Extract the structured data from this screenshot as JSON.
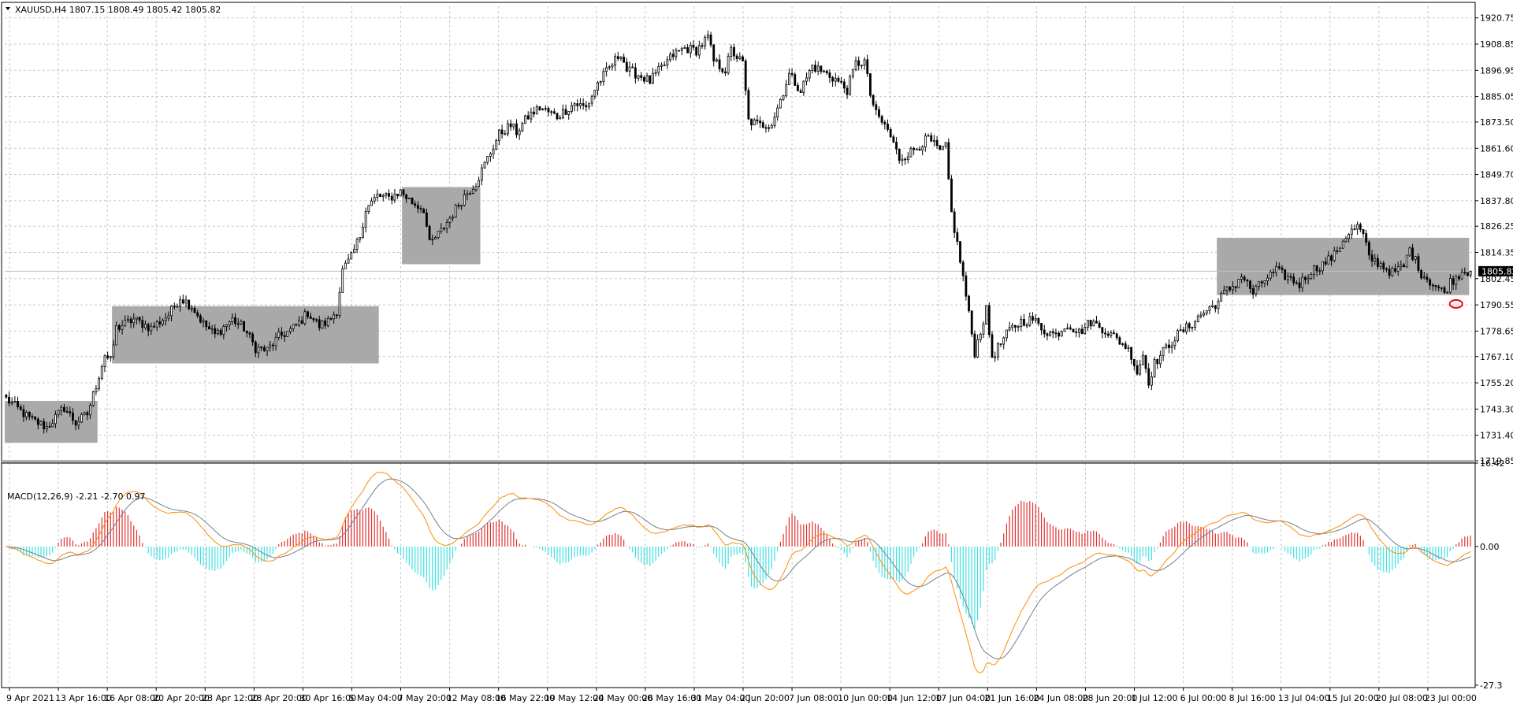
{
  "header": {
    "symbol_menu_icon": "triangle-down-icon",
    "symbol_info": "XAUUSD,H4  1807.15 1808.49 1805.42 1805.82",
    "macd_info": "MACD(12,26,9) -2.21 -2.70 0.97"
  },
  "colors": {
    "background": "#ffffff",
    "grid": "#c8c8c8",
    "candle": "#000000",
    "zone": "#a9a9a9",
    "current_price_line": "#c0c0c0",
    "price_badge": "#000000",
    "macd_line": "#ff8c00",
    "signal_line": "#708090",
    "hist_positive": "#e03030",
    "hist_negative": "#40e0e0",
    "marker": "#ff0000"
  },
  "chart_data": [
    {
      "type": "candlestick",
      "name": "price",
      "symbol": "XAUUSD",
      "timeframe": "H4",
      "current_price": "1805.82",
      "ylim": [
        1719.85,
        1926.0
      ],
      "y_ticks": [
        "1920.75",
        "1908.85",
        "1896.95",
        "1885.05",
        "1873.50",
        "1861.60",
        "1849.70",
        "1837.80",
        "1826.25",
        "1814.35",
        "1802.45",
        "1790.55",
        "1778.65",
        "1767.10",
        "1755.20",
        "1743.30",
        "1731.40",
        "1719.85"
      ],
      "x_labels": [
        "9 Apr 2021",
        "13 Apr 16:00",
        "16 Apr 08:00",
        "20 Apr 20:00",
        "23 Apr 12:00",
        "28 Apr 20:00",
        "30 Apr 16:00",
        "5 May 04:00",
        "7 May 20:00",
        "12 May 08:00",
        "16 May 22:00",
        "19 May 12:00",
        "24 May 00:00",
        "26 May 16:00",
        "31 May 04:00",
        "2 Jun 20:00",
        "7 Jun 08:00",
        "10 Jun 00:00",
        "14 Jun 12:00",
        "17 Jun 04:00",
        "21 Jun 16:00",
        "24 Jun 08:00",
        "28 Jun 20:00",
        "1 Jul 12:00",
        "6 Jul 00:00",
        "8 Jul 16:00",
        "13 Jul 04:00",
        "15 Jul 20:00",
        "20 Jul 08:00",
        "23 Jul 00:00"
      ],
      "close_path": [
        [
          0,
          1748
        ],
        [
          8,
          1739
        ],
        [
          14,
          1735
        ],
        [
          20,
          1744
        ],
        [
          24,
          1737
        ],
        [
          28,
          1741
        ],
        [
          31,
          1754
        ],
        [
          34,
          1768
        ],
        [
          36,
          1765
        ],
        [
          38,
          1780
        ],
        [
          44,
          1784
        ],
        [
          50,
          1780
        ],
        [
          56,
          1786
        ],
        [
          60,
          1794
        ],
        [
          64,
          1790
        ],
        [
          68,
          1782
        ],
        [
          72,
          1777
        ],
        [
          78,
          1784
        ],
        [
          82,
          1780
        ],
        [
          86,
          1771
        ],
        [
          90,
          1770
        ],
        [
          94,
          1776
        ],
        [
          98,
          1779
        ],
        [
          100,
          1781
        ],
        [
          104,
          1787
        ],
        [
          108,
          1781
        ],
        [
          111,
          1783
        ],
        [
          114,
          1788
        ],
        [
          116,
          1806
        ],
        [
          119,
          1812
        ],
        [
          122,
          1822
        ],
        [
          124,
          1834
        ],
        [
          128,
          1840
        ],
        [
          132,
          1839
        ],
        [
          136,
          1842
        ],
        [
          140,
          1837
        ],
        [
          144,
          1834
        ],
        [
          146,
          1818
        ],
        [
          150,
          1824
        ],
        [
          154,
          1832
        ],
        [
          158,
          1840
        ],
        [
          162,
          1846
        ],
        [
          166,
          1857
        ],
        [
          170,
          1868
        ],
        [
          174,
          1872
        ],
        [
          176,
          1869
        ],
        [
          180,
          1876
        ],
        [
          184,
          1880
        ],
        [
          190,
          1876
        ],
        [
          196,
          1882
        ],
        [
          200,
          1880
        ],
        [
          204,
          1891
        ],
        [
          208,
          1898
        ],
        [
          212,
          1905
        ],
        [
          214,
          1897
        ],
        [
          218,
          1895
        ],
        [
          222,
          1892
        ],
        [
          226,
          1898
        ],
        [
          230,
          1904
        ],
        [
          234,
          1907
        ],
        [
          238,
          1906
        ],
        [
          242,
          1912
        ],
        [
          244,
          1901
        ],
        [
          248,
          1897
        ],
        [
          250,
          1906
        ],
        [
          254,
          1900
        ],
        [
          256,
          1874
        ],
        [
          260,
          1872
        ],
        [
          264,
          1873
        ],
        [
          266,
          1880
        ],
        [
          270,
          1895
        ],
        [
          274,
          1888
        ],
        [
          278,
          1899
        ],
        [
          282,
          1896
        ],
        [
          286,
          1893
        ],
        [
          290,
          1888
        ],
        [
          293,
          1900
        ],
        [
          296,
          1901
        ],
        [
          298,
          1886
        ],
        [
          300,
          1877
        ],
        [
          304,
          1870
        ],
        [
          308,
          1857
        ],
        [
          312,
          1860
        ],
        [
          318,
          1866
        ],
        [
          322,
          1860
        ],
        [
          324,
          1862
        ],
        [
          326,
          1832
        ],
        [
          328,
          1818
        ],
        [
          330,
          1803
        ],
        [
          332,
          1786
        ],
        [
          334,
          1769
        ],
        [
          336,
          1779
        ],
        [
          338,
          1788
        ],
        [
          340,
          1767
        ],
        [
          343,
          1773
        ],
        [
          346,
          1779
        ],
        [
          350,
          1783
        ],
        [
          354,
          1784
        ],
        [
          358,
          1779
        ],
        [
          362,
          1777
        ],
        [
          366,
          1782
        ],
        [
          370,
          1778
        ],
        [
          374,
          1783
        ],
        [
          378,
          1780
        ],
        [
          382,
          1776
        ],
        [
          386,
          1772
        ],
        [
          388,
          1768
        ],
        [
          390,
          1760
        ],
        [
          392,
          1768
        ],
        [
          394,
          1756
        ],
        [
          396,
          1764
        ],
        [
          400,
          1771
        ],
        [
          404,
          1777
        ],
        [
          408,
          1781
        ],
        [
          412,
          1786
        ],
        [
          416,
          1790
        ],
        [
          418,
          1792
        ],
        [
          420,
          1796
        ],
        [
          424,
          1800
        ],
        [
          426,
          1804
        ],
        [
          430,
          1796
        ],
        [
          434,
          1802
        ],
        [
          438,
          1806
        ],
        [
          442,
          1803
        ],
        [
          446,
          1800
        ],
        [
          450,
          1806
        ],
        [
          454,
          1809
        ],
        [
          458,
          1813
        ],
        [
          462,
          1822
        ],
        [
          466,
          1826
        ],
        [
          468,
          1822
        ],
        [
          470,
          1812
        ],
        [
          474,
          1809
        ],
        [
          478,
          1805
        ],
        [
          482,
          1808
        ],
        [
          484,
          1816
        ],
        [
          488,
          1805
        ],
        [
          492,
          1800
        ],
        [
          496,
          1796
        ],
        [
          498,
          1801
        ],
        [
          500,
          1803
        ],
        [
          502,
          1806
        ],
        [
          504,
          1805.82
        ]
      ],
      "rectangles": [
        {
          "bar_start": 0,
          "bar_end": 32,
          "price_low": 1728,
          "price_high": 1747
        },
        {
          "bar_start": 37,
          "bar_end": 129,
          "price_low": 1764,
          "price_high": 1790
        },
        {
          "bar_start": 137,
          "bar_end": 164,
          "price_low": 1809,
          "price_high": 1844
        },
        {
          "bar_start": 418,
          "bar_end": 505,
          "price_low": 1795,
          "price_high": 1821
        }
      ],
      "marker": {
        "bar": 500,
        "price": 1791
      }
    },
    {
      "type": "macd",
      "name": "MACD(12,26,9)",
      "params": [
        12,
        26,
        9
      ],
      "main": -2.21,
      "signal": -2.7,
      "histogram": 0.97,
      "ylim": [
        -27.3,
        16.42
      ],
      "y_ticks": [
        "16.42",
        "0.00",
        "-27.3"
      ]
    }
  ]
}
